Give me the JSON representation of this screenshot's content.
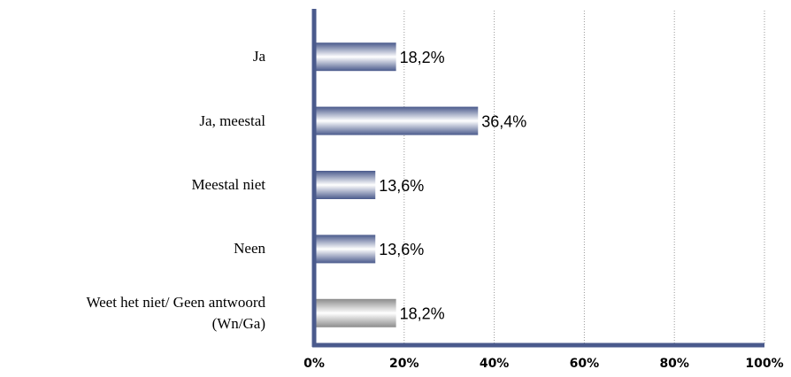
{
  "chart_data": {
    "type": "bar",
    "orientation": "horizontal",
    "categories": [
      "Ja",
      "Ja, meestal",
      "Meestal niet",
      "Neen",
      "Weet het niet/ Geen antwoord\n(Wn/Ga)"
    ],
    "values": [
      18.2,
      36.4,
      13.6,
      13.6,
      18.2
    ],
    "value_labels": [
      "18,2%",
      "36,4%",
      "13,6%",
      "13,6%",
      "18,2%"
    ],
    "colors": [
      "#4a5a8c",
      "#4a5a8c",
      "#4a5a8c",
      "#4a5a8c",
      "#8c8c8c"
    ],
    "xlim": [
      0,
      100
    ],
    "xticks": [
      {
        "value": 0,
        "label": "0%"
      },
      {
        "value": 20,
        "label": "20%"
      },
      {
        "value": 40,
        "label": "40%"
      },
      {
        "value": 60,
        "label": "60%"
      },
      {
        "value": 80,
        "label": "80%"
      },
      {
        "value": 100,
        "label": "100%"
      }
    ],
    "grid": true
  }
}
